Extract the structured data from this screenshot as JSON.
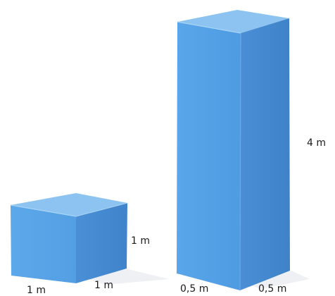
{
  "colors": {
    "face_front": "#5ba4e5",
    "face_right": "#4b8fd3",
    "face_top": "#8cc3f0",
    "edge_highlight": "#a9d4f5",
    "shadow": "#eef0f3"
  },
  "cube": {
    "label_width": "1 m",
    "label_depth": "1 m",
    "label_height": "1 m"
  },
  "prism": {
    "label_width": "0,5 m",
    "label_depth": "0,5 m",
    "label_height": "4 m"
  }
}
